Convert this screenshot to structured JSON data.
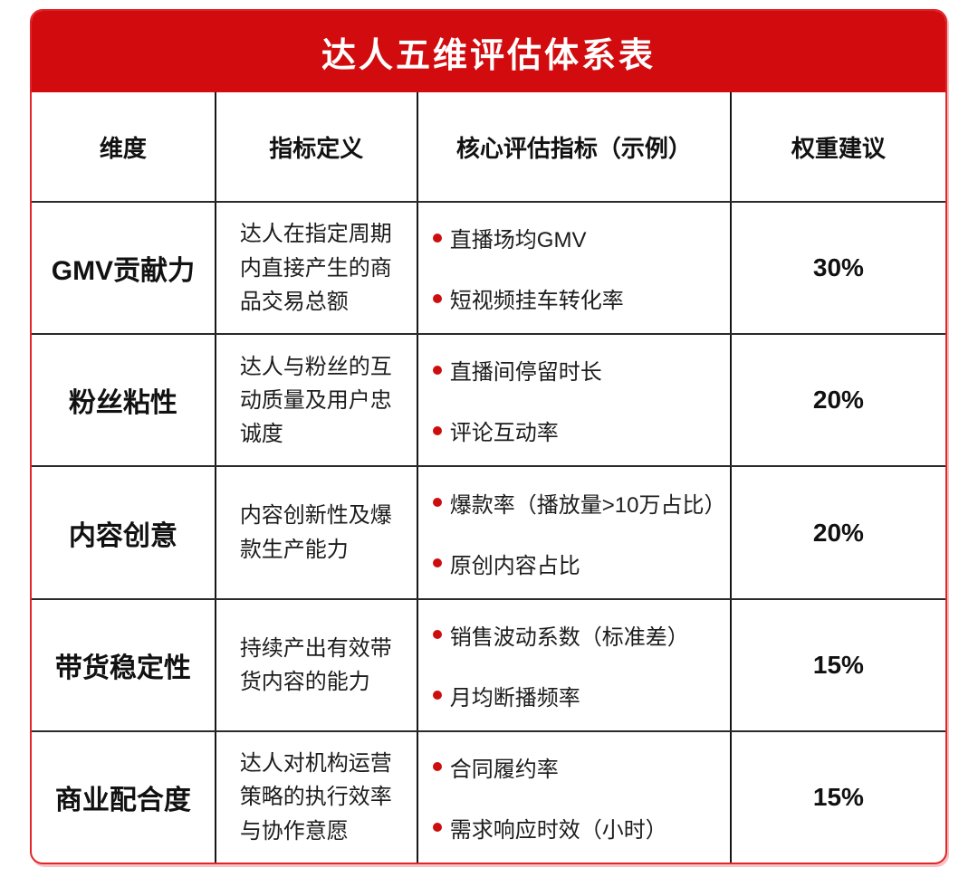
{
  "title": "达人五维评估体系表",
  "colors": {
    "banner_red": "#d20b0e",
    "outer_border_red": "#e0252b",
    "bullet_red": "#cc0e0e",
    "grid_line": "#161616",
    "title_text": "#ffffff",
    "body_text": "#1c1c1c"
  },
  "table": {
    "headers": [
      "维度",
      "指标定义",
      "核心评估指标（示例）",
      "权重建议"
    ],
    "rows": [
      {
        "dimension": "GMV贡献力",
        "definition": "达人在指定周期内直接产生的商品交易总额",
        "indicators": [
          "直播场均GMV",
          "短视频挂车转化率"
        ],
        "weight": "30%"
      },
      {
        "dimension": "粉丝粘性",
        "definition": "达人与粉丝的互动质量及用户忠诚度",
        "indicators": [
          "直播间停留时长",
          "评论互动率"
        ],
        "weight": "20%"
      },
      {
        "dimension": "内容创意",
        "definition": "内容创新性及爆款生产能力",
        "indicators": [
          "爆款率（播放量>10万占比）",
          "原创内容占比"
        ],
        "weight": "20%"
      },
      {
        "dimension": "带货稳定性",
        "definition": "持续产出有效带货内容的能力",
        "indicators": [
          "销售波动系数（标准差）",
          "月均断播频率"
        ],
        "weight": "15%"
      },
      {
        "dimension": "商业配合度",
        "definition": "达人对机构运营策略的执行效率与协作意愿",
        "indicators": [
          "合同履约率",
          "需求响应时效（小时）"
        ],
        "weight": "15%"
      }
    ]
  },
  "chart_data": {
    "type": "table",
    "title": "达人五维评估体系表",
    "columns": [
      "维度",
      "指标定义",
      "核心评估指标（示例）",
      "权重建议"
    ],
    "rows": [
      [
        "GMV贡献力",
        "达人在指定周期内直接产生的商品交易总额",
        "直播场均GMV；短视频挂车转化率",
        "30%"
      ],
      [
        "粉丝粘性",
        "达人与粉丝的互动质量及用户忠诚度",
        "直播间停留时长；评论互动率",
        "20%"
      ],
      [
        "内容创意",
        "内容创新性及爆款生产能力",
        "爆款率（播放量>10万占比）；原创内容占比",
        "20%"
      ],
      [
        "带货稳定性",
        "持续产出有效带货内容的能力",
        "销售波动系数（标准差）；月均断播频率",
        "15%"
      ],
      [
        "商业配合度",
        "达人对机构运营策略的执行效率与协作意愿",
        "合同履约率；需求响应时效（小时）",
        "15%"
      ]
    ],
    "weights_numeric": [
      30,
      20,
      20,
      15,
      15
    ]
  }
}
